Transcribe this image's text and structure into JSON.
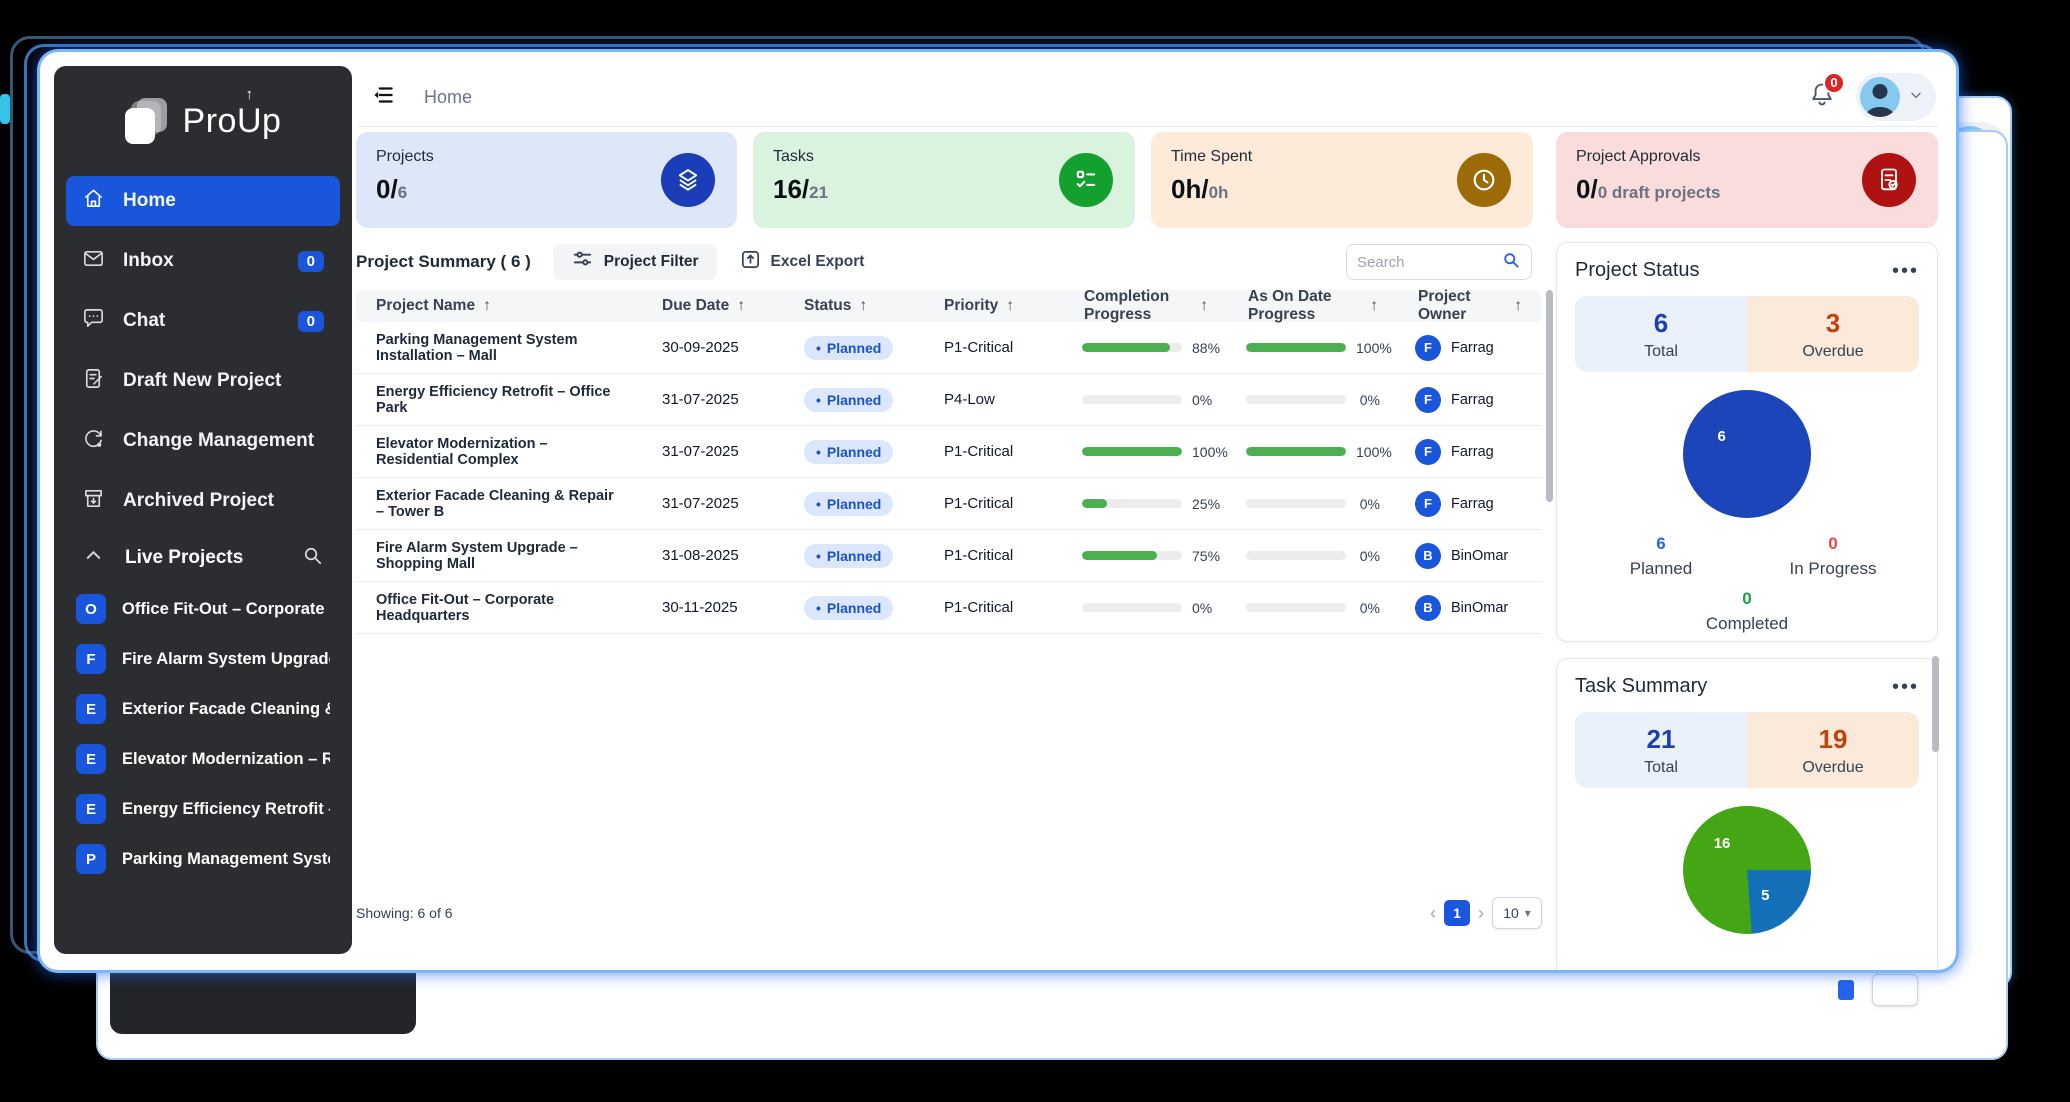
{
  "logo": {
    "pre": "Pro",
    "u": "U",
    "post": "p"
  },
  "sidebar": {
    "menu": [
      {
        "label": "Home"
      },
      {
        "label": "Inbox",
        "badge": "0"
      },
      {
        "label": "Chat",
        "badge": "0"
      },
      {
        "label": "Draft New Project"
      },
      {
        "label": "Change Management"
      },
      {
        "label": "Archived Project"
      }
    ],
    "live_projects": {
      "label": "Live Projects",
      "items": [
        {
          "initial": "O",
          "name": "Office Fit-Out – Corporate Head..."
        },
        {
          "initial": "F",
          "name": "Fire Alarm System Upgrade – Sh..."
        },
        {
          "initial": "E",
          "name": "Exterior Facade Cleaning & Repa..."
        },
        {
          "initial": "E",
          "name": "Elevator Modernization – Reside..."
        },
        {
          "initial": "E",
          "name": "Energy Efficiency Retrofit – Offic..."
        },
        {
          "initial": "P",
          "name": "Parking Management System In..."
        }
      ]
    }
  },
  "topbar": {
    "breadcrumb": "Home",
    "bell_badge": "0"
  },
  "stat_cards": [
    {
      "label": "Projects",
      "value": "0/",
      "muted": "6"
    },
    {
      "label": "Tasks",
      "value": "16/",
      "muted": "21"
    },
    {
      "label": "Time Spent",
      "value": "0h/",
      "muted": "0h"
    },
    {
      "label": "Project Approvals",
      "value": "0/",
      "muted": "0 draft projects"
    }
  ],
  "project_summary": {
    "title": "Project Summary ( 6 )",
    "filter_label": "Project Filter",
    "export_label": "Excel Export",
    "search_placeholder": "Search",
    "columns": [
      "Project Name",
      "Due Date",
      "Status",
      "Priority",
      "Completion Progress",
      "As On Date Progress",
      "Project Owner"
    ],
    "rows": [
      {
        "name": "Parking Management System Installation – Mall",
        "due": "30-09-2025",
        "status": "Planned",
        "priority": "P1-Critical",
        "completion": "88%",
        "as_on_date": "100%",
        "owner_initial": "F",
        "owner": "Farrag"
      },
      {
        "name": "Energy Efficiency Retrofit – Office Park",
        "due": "31-07-2025",
        "status": "Planned",
        "priority": "P4-Low",
        "completion": "0%",
        "as_on_date": "0%",
        "owner_initial": "F",
        "owner": "Farrag"
      },
      {
        "name": "Elevator Modernization – Residential Complex",
        "due": "31-07-2025",
        "status": "Planned",
        "priority": "P1-Critical",
        "completion": "100%",
        "as_on_date": "100%",
        "owner_initial": "F",
        "owner": "Farrag"
      },
      {
        "name": "Exterior Facade Cleaning & Repair – Tower B",
        "due": "31-07-2025",
        "status": "Planned",
        "priority": "P1-Critical",
        "completion": "25%",
        "as_on_date": "0%",
        "owner_initial": "F",
        "owner": "Farrag"
      },
      {
        "name": "Fire Alarm System Upgrade – Shopping Mall",
        "due": "31-08-2025",
        "status": "Planned",
        "priority": "P1-Critical",
        "completion": "75%",
        "as_on_date": "0%",
        "owner_initial": "B",
        "owner": "BinOmar"
      },
      {
        "name": "Office Fit-Out – Corporate Headquarters",
        "due": "30-11-2025",
        "status": "Planned",
        "priority": "P1-Critical",
        "completion": "0%",
        "as_on_date": "0%",
        "owner_initial": "B",
        "owner": "BinOmar"
      }
    ],
    "footer": {
      "showing": "Showing: 6 of 6",
      "prev": "‹",
      "page": "1",
      "next": "›",
      "page_size": "10"
    }
  },
  "project_status": {
    "title": "Project Status",
    "total": {
      "value": "6",
      "label": "Total"
    },
    "overdue": {
      "value": "3",
      "label": "Overdue"
    },
    "pie_label": "6",
    "legend": [
      {
        "value": "6",
        "label": "Planned"
      },
      {
        "value": "0",
        "label": "In Progress"
      },
      {
        "value": "0",
        "label": "Completed"
      }
    ]
  },
  "task_summary": {
    "title": "Task Summary",
    "total": {
      "value": "21",
      "label": "Total"
    },
    "overdue": {
      "value": "19",
      "label": "Overdue"
    },
    "pie_labels": {
      "green": "16",
      "blue": "5"
    }
  },
  "chart_data": [
    {
      "type": "pie",
      "title": "Project Status",
      "slices": [
        {
          "label": "Planned",
          "value": 6,
          "color": "#1b45b8"
        },
        {
          "label": "In Progress",
          "value": 0,
          "color": "#ef4444"
        },
        {
          "label": "Completed",
          "value": 0,
          "color": "#16a34a"
        }
      ],
      "rotation_deg": 0,
      "annotations": {
        "total": 6,
        "overdue": 3
      }
    },
    {
      "type": "pie",
      "title": "Task Summary",
      "slices": [
        {
          "label": "blue-segment",
          "value": 5,
          "color": "#1470b8"
        },
        {
          "label": "green-segment",
          "value": 16,
          "color": "#44a614"
        }
      ],
      "rotation_deg": 90,
      "annotations": {
        "total": 21,
        "overdue": 19
      }
    }
  ],
  "colors": {
    "accent_blue": "#1a56db",
    "success_green": "#4caf50",
    "overdue_orange": "#c2410c",
    "danger_red": "#dc2626"
  }
}
